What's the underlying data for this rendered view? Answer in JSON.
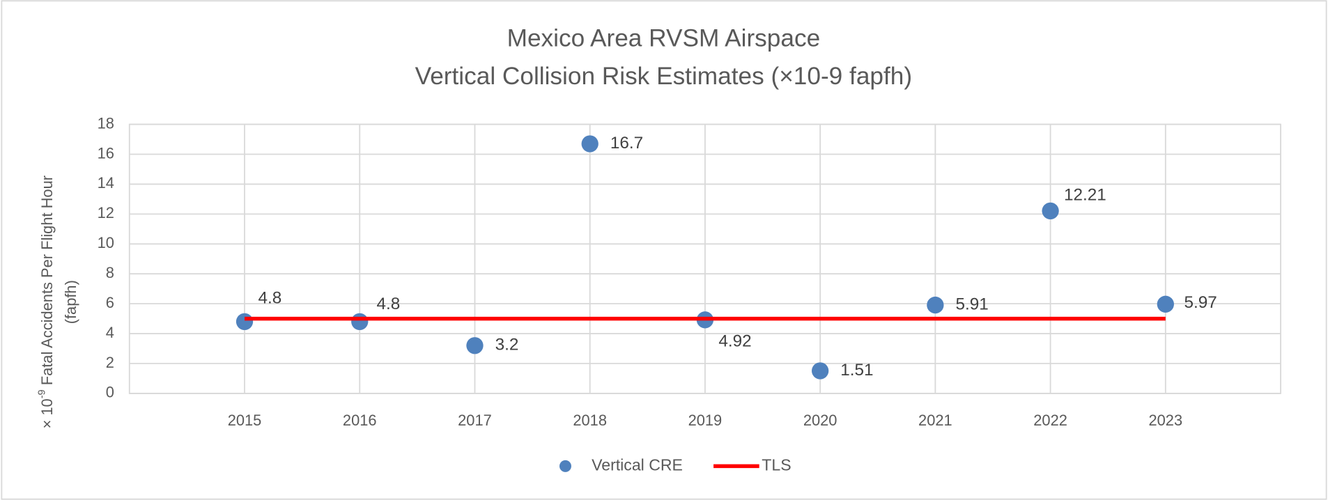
{
  "chart_data": {
    "type": "scatter",
    "title": [
      "Mexico Area RVSM Airspace",
      "Vertical Collision Risk Estimates (×10-9 fapfh)"
    ],
    "y_label": {
      "prefix": "× 10",
      "exponent": "-9",
      "text": " Fatal Accidents Per Flight Hour",
      "line2": "(fapfh)"
    },
    "x": [
      2015,
      2016,
      2017,
      2018,
      2019,
      2020,
      2021,
      2022,
      2023
    ],
    "xlim": [
      2014,
      2024
    ],
    "xticks": [
      2015,
      2016,
      2017,
      2018,
      2019,
      2020,
      2021,
      2022,
      2023
    ],
    "ylim": [
      0,
      18
    ],
    "yticks": [
      0,
      2,
      4,
      6,
      8,
      10,
      12,
      14,
      16,
      18
    ],
    "grid": true,
    "legend": "bottom",
    "series": [
      {
        "name": "Vertical CRE",
        "color": "#4f81bd",
        "type": "scatter",
        "values": [
          4.8,
          4.8,
          3.2,
          16.7,
          4.92,
          1.51,
          5.91,
          12.21,
          5.97
        ]
      },
      {
        "name": "TLS",
        "color": "#ff0000",
        "type": "line",
        "values": [
          5,
          5,
          5,
          5,
          5,
          5,
          5,
          5,
          5
        ]
      }
    ]
  }
}
